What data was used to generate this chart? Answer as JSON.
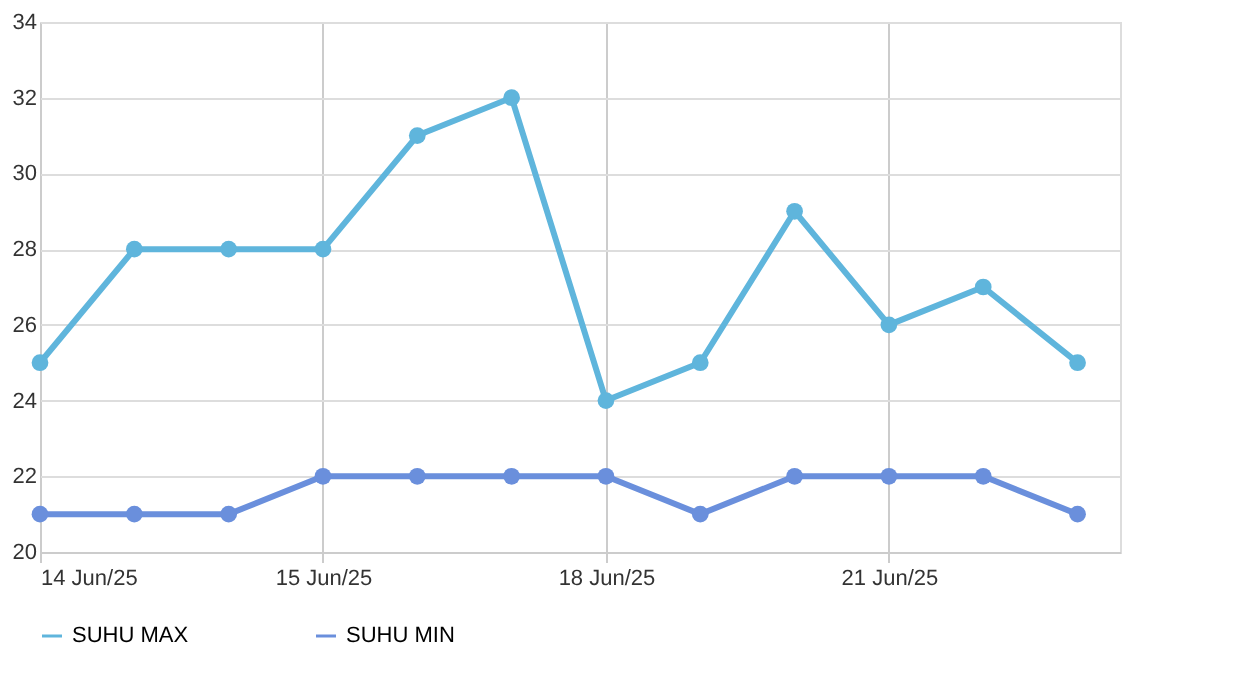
{
  "chart_data": {
    "type": "line",
    "categories": [
      "14 Jun/25",
      null,
      null,
      "15 Jun/25",
      null,
      null,
      "18 Jun/25",
      null,
      null,
      "21 Jun/25",
      null,
      null
    ],
    "series": [
      {
        "name": "SUHU MAX",
        "color": "#5fb5dc",
        "values": [
          25,
          28,
          28,
          28,
          31,
          32,
          24,
          25,
          29,
          26,
          27,
          25
        ]
      },
      {
        "name": "SUHU MIN",
        "color": "#6a8fdc",
        "values": [
          21,
          21,
          21,
          22,
          22,
          22,
          22,
          21,
          22,
          22,
          22,
          21
        ]
      }
    ],
    "ylim": [
      20,
      34
    ],
    "yticks": [
      20,
      22,
      24,
      26,
      28,
      30,
      32,
      34
    ],
    "grid": true,
    "legend": "bottom",
    "marker": "circle",
    "line_style": "solid"
  }
}
